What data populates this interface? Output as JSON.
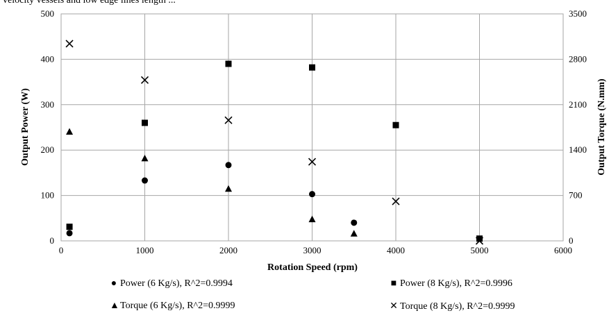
{
  "header_fragment": "velocity  vessels  and  low  edge  lines  length  ...",
  "chart_data": {
    "type": "scatter",
    "title": "",
    "xlabel": "Rotation Speed (rpm)",
    "ylabel": "Output Power (W)",
    "y2label": "Output Torque (N.mm)",
    "xlim": [
      0,
      6000
    ],
    "ylim": [
      0,
      500
    ],
    "y2lim": [
      0,
      3500
    ],
    "xticks": [
      "0",
      "1000",
      "2000",
      "3000",
      "4000",
      "5000",
      "6000"
    ],
    "yticks": [
      "0",
      "100",
      "200",
      "300",
      "400",
      "500"
    ],
    "y2ticks": [
      "0",
      "700",
      "1400",
      "2100",
      "2800",
      "3500"
    ],
    "grid": true,
    "legend_position": "bottom",
    "series": [
      {
        "name": "Power (6 Kg/s), R^2=0.9994",
        "marker": "circle",
        "axis": "left",
        "x": [
          100,
          1000,
          2000,
          3000,
          3500
        ],
        "y": [
          17,
          133,
          167,
          103,
          40
        ]
      },
      {
        "name": "Power (8 Kg/s), R^2=0.9996",
        "marker": "square",
        "axis": "left",
        "x": [
          100,
          1000,
          2000,
          3000,
          4000,
          5000
        ],
        "y": [
          31,
          260,
          390,
          382,
          255,
          5
        ]
      },
      {
        "name": "Torque (6 Kg/s), R^2=0.9999",
        "marker": "triangle",
        "axis": "right",
        "x": [
          100,
          1000,
          2000,
          3000,
          3500
        ],
        "y": [
          1680,
          1270,
          800,
          330,
          110
        ]
      },
      {
        "name": "Torque (8 Kg/s), R^2=0.9999",
        "marker": "x",
        "axis": "right",
        "x": [
          100,
          1000,
          2000,
          3000,
          4000,
          5000
        ],
        "y": [
          3040,
          2480,
          1860,
          1220,
          610,
          0
        ]
      }
    ],
    "colors": {
      "line": "#000000",
      "grid": "#a6a6a6",
      "marker": "#000000"
    }
  }
}
